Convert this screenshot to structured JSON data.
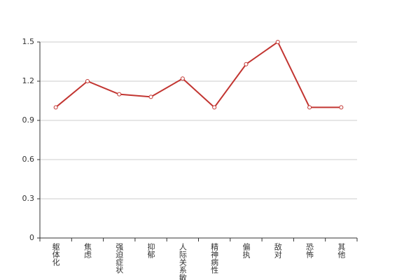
{
  "chart_data": {
    "type": "line",
    "categories": [
      "躯体化",
      "焦虑",
      "强迫症状",
      "抑郁",
      "人际关系敏感",
      "精神病性",
      "偏执",
      "敌对",
      "恐怖",
      "其他"
    ],
    "series": [
      {
        "color": "#c23531",
        "values": [
          1.0,
          1.2,
          1.1,
          1.08,
          1.22,
          1.0,
          1.33,
          1.5,
          1.0,
          1.0
        ]
      }
    ],
    "ylim": [
      0,
      1.5
    ],
    "yticks": [
      0,
      0.3,
      0.6,
      0.9,
      1.2,
      1.5
    ],
    "grid": true
  }
}
